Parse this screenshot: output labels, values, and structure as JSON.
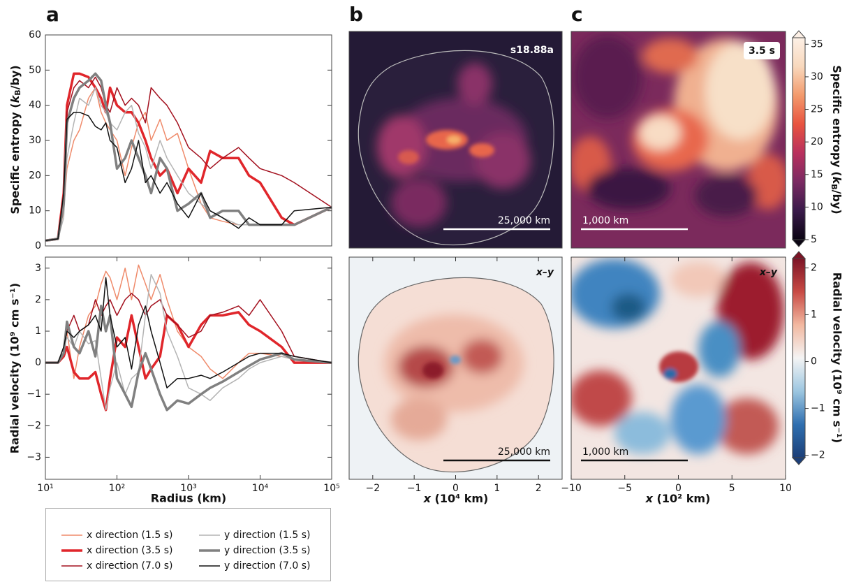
{
  "panel_labels": [
    "a",
    "b",
    "c"
  ],
  "chart_data": [
    {
      "type": "line",
      "xlog": true,
      "xlim": [
        10,
        100000
      ],
      "ylim": [
        0,
        60
      ],
      "yticks": [
        0,
        10,
        20,
        30,
        40,
        50,
        60
      ],
      "ylabel": [
        "Specific entropy (",
        "k",
        "B",
        "/by)"
      ],
      "x": [
        10,
        15,
        18,
        20,
        25,
        30,
        40,
        50,
        60,
        70,
        80,
        100,
        130,
        160,
        200,
        250,
        300,
        400,
        500,
        700,
        1000,
        1500,
        2000,
        3000,
        5000,
        7000,
        10000,
        20000,
        30000,
        100000
      ],
      "series": [
        {
          "name": "x direction (1.5 s)",
          "color": "#ef8a6a",
          "width": 1.5,
          "values": [
            1.5,
            2,
            10,
            22,
            30,
            33,
            42,
            45,
            38,
            35,
            33,
            30,
            20,
            28,
            35,
            38,
            30,
            36,
            30,
            32,
            22,
            12,
            8,
            7,
            6,
            6,
            6,
            6,
            6,
            11
          ]
        },
        {
          "name": "x direction (3.5 s)",
          "color": "#e0262b",
          "width": 3.5,
          "values": [
            1.5,
            2,
            15,
            40,
            49,
            49,
            48,
            45,
            42,
            38,
            45,
            40,
            38,
            38,
            35,
            30,
            25,
            20,
            22,
            15,
            22,
            18,
            27,
            25,
            25,
            20,
            18,
            8,
            6,
            11
          ]
        },
        {
          "name": "x direction (7.0 s)",
          "color": "#a3101e",
          "width": 1.5,
          "values": [
            1.5,
            2,
            12,
            38,
            45,
            47,
            45,
            48,
            45,
            40,
            38,
            45,
            40,
            42,
            40,
            35,
            45,
            42,
            40,
            35,
            28,
            25,
            22,
            25,
            28,
            25,
            22,
            20,
            18,
            11
          ]
        },
        {
          "name": "y direction (1.5 s)",
          "color": "#b4b4b4",
          "width": 1.5,
          "values": [
            1.5,
            2,
            8,
            25,
            35,
            42,
            40,
            45,
            40,
            38,
            35,
            33,
            38,
            40,
            32,
            28,
            22,
            30,
            25,
            20,
            15,
            12,
            10,
            8,
            6,
            6,
            6,
            6,
            6,
            11
          ]
        },
        {
          "name": "y direction (3.5 s)",
          "color": "#808080",
          "width": 3.5,
          "values": [
            1.5,
            2,
            12,
            35,
            42,
            45,
            47,
            49,
            47,
            40,
            35,
            22,
            25,
            30,
            25,
            20,
            15,
            25,
            22,
            10,
            12,
            15,
            8,
            10,
            10,
            6,
            6,
            6,
            6,
            11
          ]
        },
        {
          "name": "y direction (7.0 s)",
          "color": "#111111",
          "width": 1.5,
          "values": [
            1.5,
            2,
            15,
            36,
            38,
            38,
            37,
            34,
            33,
            35,
            30,
            28,
            18,
            22,
            30,
            18,
            20,
            15,
            18,
            12,
            8,
            15,
            10,
            8,
            5,
            8,
            6,
            6,
            10,
            11
          ]
        }
      ]
    },
    {
      "type": "line",
      "xlog": true,
      "xlim": [
        10,
        100000
      ],
      "ylim": [
        -3.7,
        3.35
      ],
      "xticks": [
        {
          "value": 10,
          "label": "10¹"
        },
        {
          "value": 100,
          "label": "10²"
        },
        {
          "value": 1000,
          "label": "10³"
        },
        {
          "value": 10000,
          "label": "10⁴"
        },
        {
          "value": 100000,
          "label": "10⁵"
        }
      ],
      "yticks": [
        {
          "value": -3,
          "label": "−3"
        },
        {
          "value": -2,
          "label": "−2"
        },
        {
          "value": -1,
          "label": "−1"
        },
        0,
        1,
        2,
        3
      ],
      "xlabel": "Radius (km)",
      "ylabel": "Radial velocity (10⁹ cm s⁻¹)",
      "x": [
        10,
        15,
        18,
        20,
        25,
        30,
        40,
        50,
        60,
        70,
        80,
        100,
        130,
        160,
        200,
        250,
        300,
        400,
        500,
        700,
        1000,
        1500,
        2000,
        3000,
        5000,
        7000,
        10000,
        20000,
        30000,
        100000
      ],
      "series": [
        {
          "color": "#ef8a6a",
          "width": 1.5,
          "values": [
            0,
            0,
            0.3,
            1.0,
            -0.5,
            0.5,
            1.5,
            1.8,
            2.5,
            2.9,
            2.7,
            2.0,
            3.0,
            2.0,
            3.1,
            2.5,
            2.0,
            2.8,
            2.0,
            1.0,
            0.5,
            0.2,
            -0.2,
            -0.5,
            0.0,
            0.3,
            0.3,
            0.2,
            0.1,
            0
          ]
        },
        {
          "color": "#e0262b",
          "width": 3.5,
          "values": [
            0,
            0,
            0.2,
            0.5,
            -0.3,
            -0.5,
            -0.5,
            -0.3,
            -1.0,
            -1.5,
            -0.5,
            0.8,
            0.5,
            1.5,
            0.5,
            -0.5,
            -0.2,
            0.2,
            1.5,
            1.2,
            0.5,
            1.2,
            1.5,
            1.5,
            1.6,
            1.2,
            1.0,
            0.5,
            0,
            0
          ]
        },
        {
          "color": "#a3101e",
          "width": 1.5,
          "values": [
            0,
            0,
            0.3,
            1.0,
            1.5,
            1.0,
            1.2,
            2.0,
            1.5,
            1.8,
            2.0,
            1.5,
            2.0,
            2.2,
            2.0,
            1.5,
            1.8,
            2.0,
            1.5,
            1.2,
            0.8,
            1.0,
            1.5,
            1.6,
            1.8,
            1.5,
            2.0,
            1.0,
            0.2,
            0
          ]
        },
        {
          "color": "#b4b4b4",
          "width": 1.5,
          "values": [
            0,
            0,
            0.5,
            0.8,
            0.5,
            1.0,
            0.6,
            0.7,
            -0.5,
            -1.5,
            -0.8,
            0.0,
            -1.0,
            -0.5,
            -0.3,
            1.5,
            2.8,
            2.2,
            1.0,
            0.2,
            -0.8,
            -1.0,
            -1.2,
            -0.8,
            -0.5,
            -0.2,
            0.0,
            0.2,
            0.1,
            0
          ]
        },
        {
          "color": "#808080",
          "width": 3.5,
          "values": [
            0,
            0,
            0.3,
            1.3,
            0.5,
            0.3,
            1.0,
            0.2,
            1.8,
            1.0,
            1.5,
            -0.5,
            -1.0,
            -1.4,
            -0.3,
            0.3,
            -0.2,
            -1.0,
            -1.5,
            -1.2,
            -1.3,
            -1.0,
            -0.8,
            -0.6,
            -0.3,
            -0.1,
            0.1,
            0.3,
            0.1,
            0
          ]
        },
        {
          "color": "#111111",
          "width": 1.5,
          "values": [
            0,
            0,
            0.5,
            1.0,
            0.8,
            1.0,
            1.2,
            1.5,
            1.0,
            2.7,
            1.5,
            0.5,
            0.8,
            -0.2,
            1.2,
            1.8,
            1.0,
            0.0,
            -0.8,
            -0.5,
            -0.5,
            -0.4,
            -0.5,
            -0.3,
            0.0,
            0.2,
            0.3,
            0.3,
            0.2,
            0
          ]
        }
      ]
    },
    {
      "type": "image",
      "model": "s18.88a",
      "scalebar": "25,000 km"
    },
    {
      "type": "image",
      "plane": "x–y",
      "scalebar": "25,000 km",
      "xlim": [
        -2.57,
        2.57
      ],
      "xticks": [
        {
          "value": -2,
          "label": "−2"
        },
        {
          "value": -1,
          "label": "−1"
        },
        0,
        1,
        2
      ],
      "xlabel": [
        "x",
        " (10⁴ km)"
      ]
    },
    {
      "type": "image",
      "time": "3.5 s",
      "scalebar": "1,000 km"
    },
    {
      "type": "image",
      "plane": "x–y",
      "scalebar": "1,000 km",
      "xlim": [
        -10,
        10
      ],
      "xticks": [
        {
          "value": -10,
          "label": "−10"
        },
        {
          "value": -5,
          "label": "−5"
        },
        0,
        5,
        10
      ],
      "xlabel": [
        "x",
        " (10² km)"
      ]
    },
    {
      "type": "colorbar",
      "ylim": [
        5,
        36
      ],
      "yticks": [
        5,
        10,
        15,
        20,
        25,
        30,
        35
      ],
      "ylabel": [
        "Specific entropy (",
        "k",
        "B",
        "/by)"
      ],
      "colors": [
        "#0b0513",
        "#3a1a4a",
        "#7a2a62",
        "#b8305e",
        "#e8533f",
        "#f39a6c",
        "#f8d8bc",
        "#fdf0e6"
      ]
    },
    {
      "type": "colorbar",
      "ylim": [
        -2.05,
        2.2
      ],
      "yticks": [
        {
          "value": -2,
          "label": "−2"
        },
        {
          "value": -1,
          "label": "−1"
        },
        0,
        1,
        2
      ],
      "ylabel": "Radial velocity (10⁹ cm s⁻¹)",
      "colors": [
        "#1c3f78",
        "#2f6fb0",
        "#9cc6e0",
        "#f4f4f4",
        "#f2b8a0",
        "#c84a44",
        "#7d1426"
      ]
    }
  ]
}
